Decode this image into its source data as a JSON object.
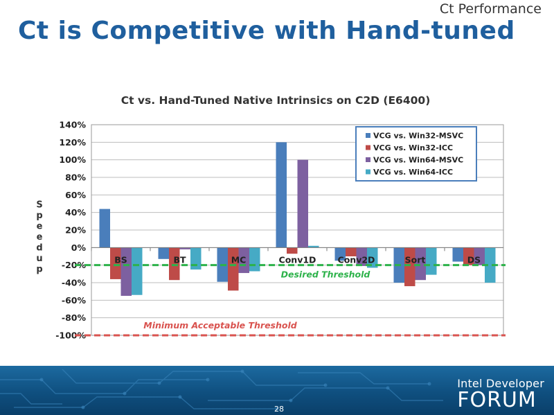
{
  "header": {
    "section_label": "Ct Performance",
    "title": "Ct is Competitive with Hand-tuned"
  },
  "chart_data": {
    "type": "bar",
    "title": "Ct vs. Hand-Tuned Native Intrinsics on C2D (E6400)",
    "xlabel": "",
    "ylabel": "Speedup",
    "categories": [
      "BS",
      "BT",
      "MC",
      "Conv1D",
      "Conv2D",
      "Sort",
      "DS"
    ],
    "series": [
      {
        "name": "VCG vs. Win32-MSVC",
        "color": "#4a7ebb",
        "values": [
          44,
          -13,
          -39,
          120,
          -15,
          -40,
          -16
        ]
      },
      {
        "name": "VCG vs. Win32-ICC",
        "color": "#be4b48",
        "values": [
          -36,
          -37,
          -49,
          -7,
          -10,
          -44,
          -20
        ]
      },
      {
        "name": "VCG vs. Win64-MSVC",
        "color": "#7d60a0",
        "values": [
          -55,
          -2,
          -29,
          100,
          -21,
          -37,
          -20
        ]
      },
      {
        "name": "VCG vs. Win64-ICC",
        "color": "#46aac5",
        "values": [
          -54,
          -25,
          -27,
          2,
          -23,
          -31,
          -40
        ]
      }
    ],
    "ylim": [
      -100,
      140
    ],
    "ytick_step": 20,
    "ytick_format": "percent",
    "grid": true,
    "legend_position": "top-right",
    "reference_lines": [
      {
        "label": "Desired Threshold",
        "value": -20,
        "color": "#2db24a"
      },
      {
        "label": "Minimum Acceptable Threshold",
        "value": -100,
        "color": "#d9534f"
      }
    ]
  },
  "footer": {
    "brand_line1": "Intel Developer",
    "brand_line2": "FORUM",
    "page_number": "28",
    "colors": {
      "background": "#155a8a",
      "circuit": "#3b86bd"
    }
  }
}
